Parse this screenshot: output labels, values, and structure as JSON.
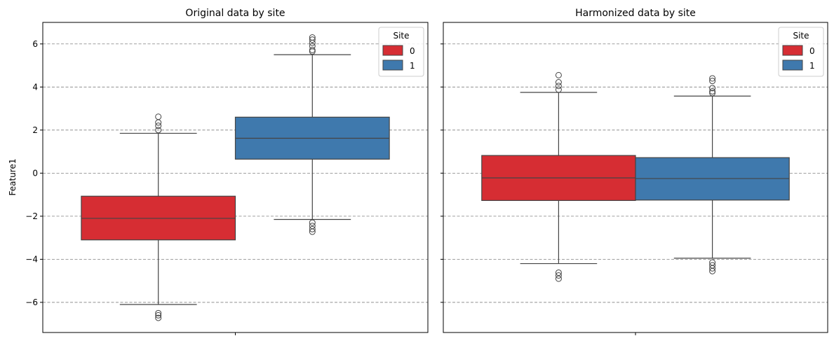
{
  "figure": {
    "ylabel": "Feature1",
    "colors": {
      "site0": "#d62d33",
      "site1": "#3f79ad",
      "median": "#444444",
      "grid": "#808080"
    }
  },
  "chart_data": [
    {
      "type": "box",
      "title": "Original data by site",
      "xlabel": "",
      "ylabel": "Feature1",
      "ylim": [
        -7.4,
        7.0
      ],
      "yticks": [
        -6,
        -4,
        -2,
        0,
        2,
        4,
        6
      ],
      "ytick_labels": [
        "−6",
        "−4",
        "−2",
        "0",
        "2",
        "4",
        "6"
      ],
      "grid": "y-dashed",
      "legend": {
        "title": "Site",
        "placement": "top-right",
        "entries": [
          "0",
          "1"
        ]
      },
      "series": [
        {
          "name": "0",
          "color": "#d62d33",
          "whisker_low": -6.1,
          "q1": -3.1,
          "median": -2.1,
          "q3": -1.07,
          "whisker_high": 1.85,
          "outliers": [
            2.0,
            2.2,
            2.35,
            2.62,
            -6.5,
            -6.6,
            -6.72
          ]
        },
        {
          "name": "1",
          "color": "#3f79ad",
          "whisker_low": -2.15,
          "q1": 0.65,
          "median": 1.62,
          "q3": 2.6,
          "whisker_high": 5.5,
          "outliers": [
            5.65,
            5.72,
            5.9,
            6.05,
            6.2,
            6.3,
            -2.3,
            -2.45,
            -2.6,
            -2.72
          ]
        }
      ]
    },
    {
      "type": "box",
      "title": "Harmonized data by site",
      "xlabel": "",
      "ylabel": "",
      "ylim": [
        -7.4,
        7.0
      ],
      "yticks": [
        -6,
        -4,
        -2,
        0,
        2,
        4,
        6
      ],
      "grid": "y-dashed",
      "legend": {
        "title": "Site",
        "placement": "top-right",
        "entries": [
          "0",
          "1"
        ]
      },
      "series": [
        {
          "name": "0",
          "color": "#d62d33",
          "whisker_low": -4.2,
          "q1": -1.27,
          "median": -0.22,
          "q3": 0.82,
          "whisker_high": 3.75,
          "outliers": [
            3.88,
            4.05,
            4.22,
            4.55,
            -4.62,
            -4.75,
            -4.9
          ]
        },
        {
          "name": "1",
          "color": "#3f79ad",
          "whisker_low": -3.95,
          "q1": -1.25,
          "median": -0.25,
          "q3": 0.72,
          "whisker_high": 3.58,
          "outliers": [
            3.72,
            3.8,
            3.95,
            4.28,
            4.4,
            -4.15,
            -4.28,
            -4.42,
            -4.55
          ]
        }
      ]
    }
  ]
}
